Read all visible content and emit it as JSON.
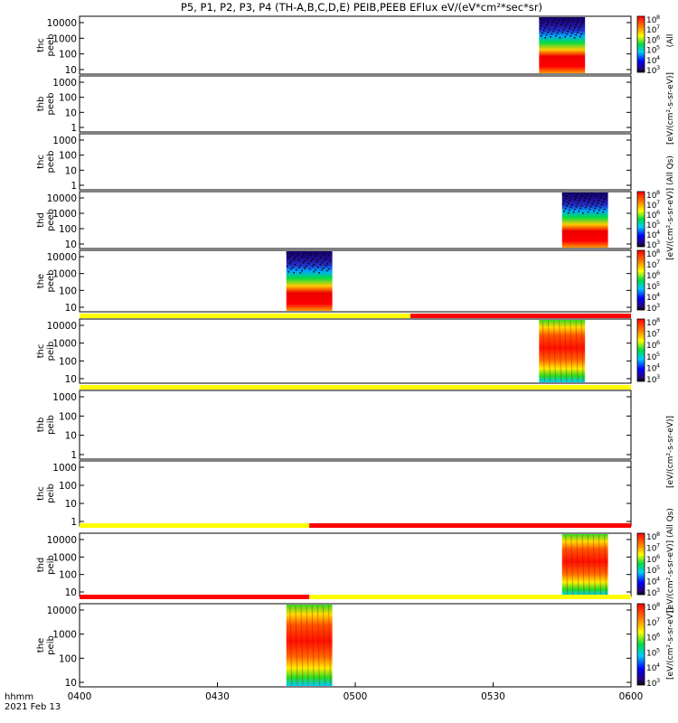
{
  "title": "P5, P1, P2, P3, P4 (TH-A,B,C,D,E) PEIB,PEEB EFlux eV/(eV*cm²*sec*sr)",
  "time_axis": {
    "label_line1": "hhmm",
    "label_line2": "2021 Feb 13",
    "ticks": [
      "0400",
      "0430",
      "0500",
      "0530",
      "0600"
    ]
  },
  "colorbar_labels": {
    "log_ticks": [
      "3",
      "4",
      "5",
      "6",
      "7",
      "8"
    ],
    "unit_text": "[eV/(cm²-s-sr-eV)]",
    "unit_text_full": "[eV/(cm²-s-sr-eV)] (All Qs)",
    "unit_text_top": "(All"
  },
  "chart_data": [
    {
      "type": "heatmap",
      "ylabel": [
        "thc",
        "peeb"
      ],
      "y_ticks": [
        "10",
        "100",
        "1000",
        "10000"
      ],
      "log_y": true,
      "colorbar": true,
      "spectrogram": [
        {
          "start": "0540",
          "end": "0550",
          "low_flux_top": true
        }
      ]
    },
    {
      "type": "heatmap",
      "ylabel": [
        "thb",
        "peeb"
      ],
      "y_ticks": [
        "1",
        "10",
        "100",
        "1000"
      ],
      "log_y": true,
      "colorbar": false,
      "spectrogram": []
    },
    {
      "type": "heatmap",
      "ylabel": [
        "thc",
        "peeb"
      ],
      "y_ticks": [
        "1",
        "10",
        "100",
        "1000"
      ],
      "log_y": true,
      "colorbar": false,
      "spectrogram": []
    },
    {
      "type": "heatmap",
      "ylabel": [
        "thd",
        "peeb"
      ],
      "y_ticks": [
        "10",
        "100",
        "1000",
        "10000"
      ],
      "log_y": true,
      "colorbar": true,
      "spectrogram": [
        {
          "start": "0545",
          "end": "0555",
          "low_flux_top": true
        }
      ]
    },
    {
      "type": "heatmap",
      "ylabel": [
        "the",
        "peeb"
      ],
      "y_ticks": [
        "10",
        "100",
        "1000",
        "10000"
      ],
      "log_y": true,
      "colorbar": true,
      "spectrogram": [
        {
          "start": "0445",
          "end": "0455",
          "low_flux_top": true
        }
      ],
      "status_bar": [
        {
          "start": "0400",
          "end": "0512",
          "color": "#ffff00"
        },
        {
          "start": "0512",
          "end": "0600",
          "color": "#ff0000"
        }
      ]
    },
    {
      "type": "heatmap",
      "ylabel": [
        "thc",
        "peib"
      ],
      "y_ticks": [
        "10",
        "100",
        "1000",
        "10000"
      ],
      "log_y": true,
      "colorbar": true,
      "spectrogram": [
        {
          "start": "0540",
          "end": "0550",
          "low_flux_top": false
        }
      ],
      "status_bar": [
        {
          "start": "0400",
          "end": "0600",
          "color": "#ffff00"
        }
      ]
    },
    {
      "type": "heatmap",
      "ylabel": [
        "thb",
        "peib"
      ],
      "y_ticks": [
        "1",
        "10",
        "100",
        "1000"
      ],
      "log_y": true,
      "colorbar": false,
      "spectrogram": []
    },
    {
      "type": "heatmap",
      "ylabel": [
        "thc",
        "peib"
      ],
      "y_ticks": [
        "1",
        "10",
        "100",
        "1000"
      ],
      "log_y": true,
      "colorbar": false,
      "spectrogram": [],
      "status_bar": [
        {
          "start": "0400",
          "end": "0450",
          "color": "#ffff00"
        },
        {
          "start": "0450",
          "end": "0600",
          "color": "#ff0000"
        }
      ]
    },
    {
      "type": "heatmap",
      "ylabel": [
        "thd",
        "peib"
      ],
      "y_ticks": [
        "10",
        "100",
        "1000",
        "10000"
      ],
      "log_y": true,
      "colorbar": true,
      "spectrogram": [
        {
          "start": "0545",
          "end": "0555",
          "low_flux_top": false
        }
      ],
      "status_bar": [
        {
          "start": "0400",
          "end": "0450",
          "color": "#ff0000"
        },
        {
          "start": "0450",
          "end": "0600",
          "color": "#ffff00"
        }
      ]
    },
    {
      "type": "heatmap",
      "ylabel": [
        "the",
        "peib"
      ],
      "y_ticks": [
        "10",
        "100",
        "1000",
        "10000"
      ],
      "log_y": true,
      "colorbar": true,
      "spectrogram": [
        {
          "start": "0445",
          "end": "0455",
          "low_flux_top": false
        }
      ]
    }
  ]
}
